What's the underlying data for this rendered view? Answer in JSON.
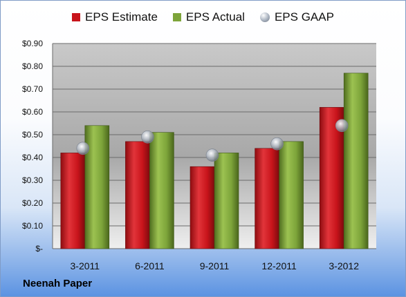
{
  "company_name": "Neenah Paper",
  "colors": {
    "estimate": "#c8141b",
    "actual": "#7da43a",
    "gaap": "#a9b2bf"
  },
  "chart_data": {
    "type": "bar",
    "categories": [
      "3-2011",
      "6-2011",
      "9-2011",
      "12-2011",
      "3-2012"
    ],
    "series": [
      {
        "name": "EPS Estimate",
        "kind": "bar",
        "values": [
          0.42,
          0.47,
          0.36,
          0.44,
          0.62
        ]
      },
      {
        "name": "EPS Actual",
        "kind": "bar",
        "values": [
          0.54,
          0.51,
          0.42,
          0.47,
          0.77
        ]
      },
      {
        "name": "EPS GAAP",
        "kind": "marker",
        "values": [
          0.44,
          0.49,
          0.41,
          0.46,
          0.54
        ]
      }
    ],
    "ylim": [
      0,
      0.9
    ],
    "yticks": [
      0,
      0.1,
      0.2,
      0.3,
      0.4,
      0.5,
      0.6,
      0.7,
      0.8,
      0.9
    ],
    "ytick_labels": [
      "$-",
      "$0.10",
      "$0.20",
      "$0.30",
      "$0.40",
      "$0.50",
      "$0.60",
      "$0.70",
      "$0.80",
      "$0.90"
    ],
    "grid": true,
    "legend_position": "top"
  }
}
